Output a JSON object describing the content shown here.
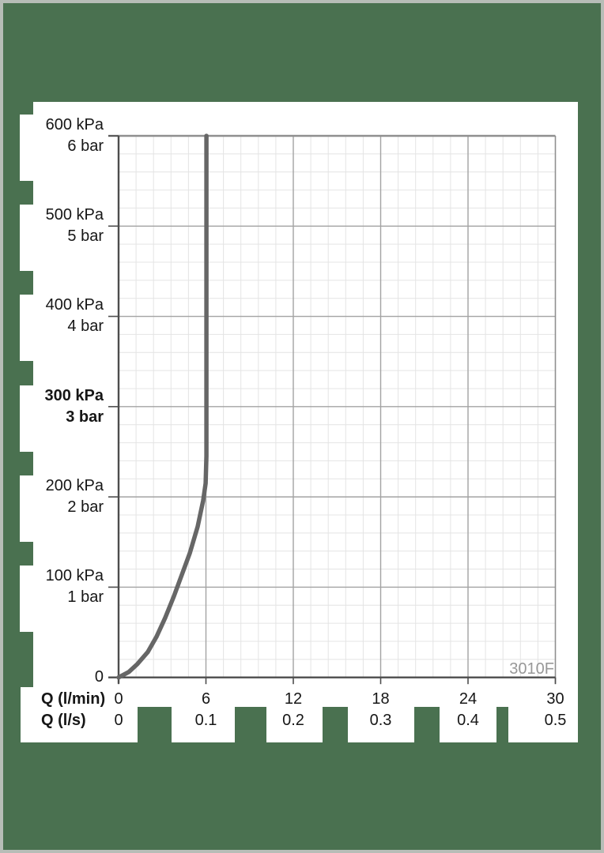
{
  "frame": {
    "background_color": "#4a7150",
    "border_color": "#b7bdb7",
    "panel_color": "#ffffff"
  },
  "chart_data": {
    "type": "line",
    "title": "",
    "model_code": "3010F",
    "grid": {
      "minor_color": "#e4e4e4",
      "major_color": "#a3a3a3",
      "border_color": "#8f8f8f",
      "axis_color": "#4d4d4d",
      "grid_on": true
    },
    "x_axis": {
      "label_row1": "Q (l/min)",
      "label_row2": "Q (l/s)",
      "range_lmin": [
        0,
        30
      ],
      "major_step_lmin": 6,
      "minor_step_lmin": 1.2,
      "ticks_lmin": [
        "0",
        "6",
        "12",
        "18",
        "24",
        "30"
      ],
      "ticks_ls": [
        "0",
        "0.1",
        "0.2",
        "0.3",
        "0.4",
        "0.5"
      ]
    },
    "y_axis": {
      "range_kpa": [
        0,
        600
      ],
      "major_step_kpa": 100,
      "minor_step_kpa": 20,
      "zero_label": "0",
      "ticks": [
        {
          "kpa": "600 kPa",
          "bar": "6 bar",
          "value": 600,
          "bold": false
        },
        {
          "kpa": "500 kPa",
          "bar": "5 bar",
          "value": 500,
          "bold": false
        },
        {
          "kpa": "400 kPa",
          "bar": "4 bar",
          "value": 400,
          "bold": false
        },
        {
          "kpa": "300 kPa",
          "bar": "3 bar",
          "value": 300,
          "bold": true
        },
        {
          "kpa": "200 kPa",
          "bar": "2 bar",
          "value": 200,
          "bold": false
        },
        {
          "kpa": "100 kPa",
          "bar": "1 bar",
          "value": 100,
          "bold": false
        }
      ]
    },
    "series": [
      {
        "name": "flow-curve",
        "color": "#666666",
        "stroke_width": 5.5,
        "points_lmin_kpa": [
          [
            0,
            0
          ],
          [
            0.7,
            6
          ],
          [
            1.3,
            15
          ],
          [
            2.0,
            28
          ],
          [
            2.6,
            45
          ],
          [
            3.2,
            66
          ],
          [
            3.8,
            90
          ],
          [
            4.35,
            114
          ],
          [
            4.9,
            138
          ],
          [
            5.43,
            167
          ],
          [
            5.81,
            196
          ],
          [
            5.98,
            215
          ],
          [
            6.03,
            245
          ],
          [
            6.03,
            600
          ]
        ]
      }
    ]
  }
}
